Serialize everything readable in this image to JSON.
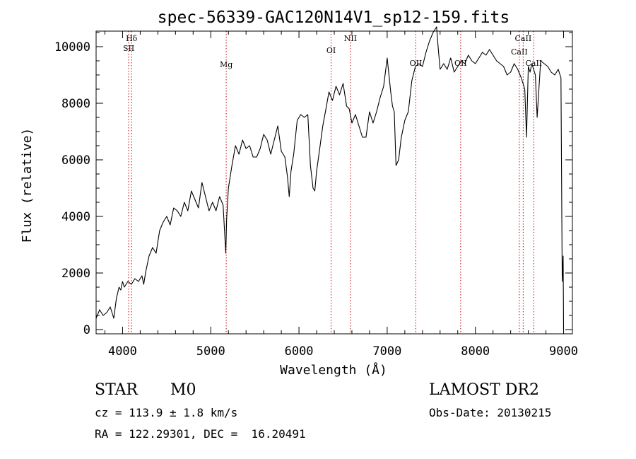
{
  "chart_data": {
    "type": "line",
    "title": "spec-56339-GAC120N14V1_sp12-159.fits",
    "xlabel": "Wavelength (Å)",
    "ylabel": "Flux (relative)",
    "xlim": [
      3700,
      9100
    ],
    "ylim": [
      -150,
      10550
    ],
    "grid": false,
    "xticks": [
      4000,
      5000,
      6000,
      7000,
      8000,
      9000
    ],
    "xtick_labels": [
      "4000",
      "5000",
      "6000",
      "7000",
      "8000",
      "9000"
    ],
    "yticks": [
      0,
      2000,
      4000,
      6000,
      8000,
      10000
    ],
    "ytick_labels": [
      "0",
      "2000",
      "4000",
      "6000",
      "8000",
      "10000"
    ],
    "series": [
      {
        "x": [
          3700,
          3740,
          3780,
          3820,
          3860,
          3900,
          3930,
          3960,
          3980,
          4000,
          4020,
          4060,
          4100,
          4140,
          4180,
          4220,
          4240,
          4260,
          4300,
          4340,
          4380,
          4420,
          4460,
          4500,
          4540,
          4580,
          4620,
          4660,
          4700,
          4740,
          4780,
          4820,
          4860,
          4900,
          4940,
          4980,
          5020,
          5060,
          5100,
          5140,
          5170,
          5180,
          5200,
          5240,
          5280,
          5320,
          5360,
          5400,
          5440,
          5480,
          5520,
          5560,
          5600,
          5640,
          5680,
          5720,
          5760,
          5800,
          5840,
          5870,
          5890,
          5910,
          5940,
          5980,
          6020,
          6060,
          6100,
          6130,
          6160,
          6180,
          6200,
          6240,
          6270,
          6300,
          6340,
          6380,
          6420,
          6460,
          6500,
          6540,
          6570,
          6600,
          6640,
          6680,
          6720,
          6760,
          6800,
          6840,
          6880,
          6920,
          6960,
          7000,
          7040,
          7060,
          7080,
          7100,
          7130,
          7160,
          7200,
          7240,
          7280,
          7320,
          7360,
          7400,
          7440,
          7480,
          7520,
          7560,
          7580,
          7600,
          7640,
          7680,
          7720,
          7760,
          7800,
          7840,
          7880,
          7920,
          7960,
          8000,
          8040,
          8080,
          8120,
          8160,
          8200,
          8240,
          8280,
          8320,
          8360,
          8400,
          8440,
          8480,
          8520,
          8560,
          8580,
          8600,
          8620,
          8640,
          8660,
          8680,
          8700,
          8740,
          8780,
          8820,
          8860,
          8900,
          8940,
          8970,
          8985,
          8995,
          9000
        ],
        "y": [
          400,
          700,
          500,
          600,
          800,
          400,
          1100,
          1500,
          1400,
          1700,
          1500,
          1700,
          1600,
          1800,
          1700,
          1900,
          1600,
          2000,
          2600,
          2900,
          2700,
          3500,
          3800,
          4000,
          3700,
          4300,
          4200,
          4000,
          4500,
          4200,
          4900,
          4600,
          4300,
          5200,
          4700,
          4200,
          4500,
          4200,
          4700,
          4400,
          2700,
          3900,
          5000,
          5800,
          6500,
          6200,
          6700,
          6400,
          6500,
          6100,
          6100,
          6400,
          6900,
          6700,
          6200,
          6700,
          7200,
          6300,
          6100,
          5400,
          4700,
          5600,
          6200,
          7400,
          7600,
          7500,
          7600,
          5800,
          5000,
          4900,
          5600,
          6500,
          7200,
          7700,
          8400,
          8100,
          8600,
          8300,
          8700,
          7900,
          7800,
          7300,
          7600,
          7200,
          6800,
          6800,
          7700,
          7300,
          7700,
          8200,
          8600,
          9600,
          8400,
          7900,
          7700,
          5800,
          6000,
          6800,
          7400,
          7700,
          8800,
          9300,
          9400,
          9300,
          9800,
          10200,
          10500,
          10700,
          9900,
          9200,
          9400,
          9200,
          9600,
          9100,
          9300,
          9500,
          9400,
          9700,
          9500,
          9400,
          9600,
          9800,
          9700,
          9900,
          9700,
          9500,
          9400,
          9300,
          9000,
          9100,
          9400,
          9200,
          8900,
          8500,
          6800,
          9300,
          9100,
          9400,
          9200,
          9000,
          7500,
          9500,
          9400,
          9300,
          9100,
          9000,
          9200,
          8900,
          1700,
          2600,
          0
        ]
      }
    ],
    "line_markers": [
      {
        "label": "Hδ",
        "x": 4102
      },
      {
        "label": "SII",
        "x": 4069
      },
      {
        "label": "Mg",
        "x": 5175
      },
      {
        "label": "OI",
        "x": 6364
      },
      {
        "label": "NII",
        "x": 6584
      },
      {
        "label": "OII",
        "x": 7325
      },
      {
        "label": "OII",
        "x": 7833
      },
      {
        "label": "CaII",
        "x": 8498
      },
      {
        "label": "CaII",
        "x": 8542
      },
      {
        "label": "CaII",
        "x": 8662
      }
    ],
    "colors": {
      "spectrum": "#000000",
      "markers": "#cc0000",
      "axes": "#000000"
    }
  },
  "footer": {
    "object_class": "STAR",
    "subclass": "M0",
    "redshift": "cz = 113.9 ± 1.8 km/s",
    "coords": "RA = 122.29301, DEC =  16.20491",
    "survey": "LAMOST DR2",
    "obs_date": "Obs-Date: 20130215"
  }
}
